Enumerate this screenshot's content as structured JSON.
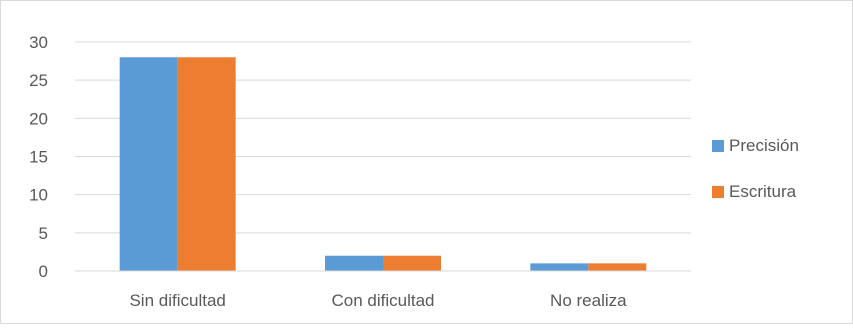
{
  "chart_data": {
    "type": "bar",
    "categories": [
      "Sin dificultad",
      "Con dificultad",
      "No realiza"
    ],
    "series": [
      {
        "name": "Precisión",
        "values": [
          28,
          2,
          1
        ],
        "color": "#5b9bd5"
      },
      {
        "name": "Escritura",
        "values": [
          28,
          2,
          1
        ],
        "color": "#ed7d31"
      }
    ],
    "ylim": [
      0,
      30
    ],
    "yticks": [
      0,
      5,
      10,
      15,
      20,
      25,
      30
    ],
    "grid": true,
    "legend_position": "right",
    "gridline_color": "#d9d9d9"
  }
}
